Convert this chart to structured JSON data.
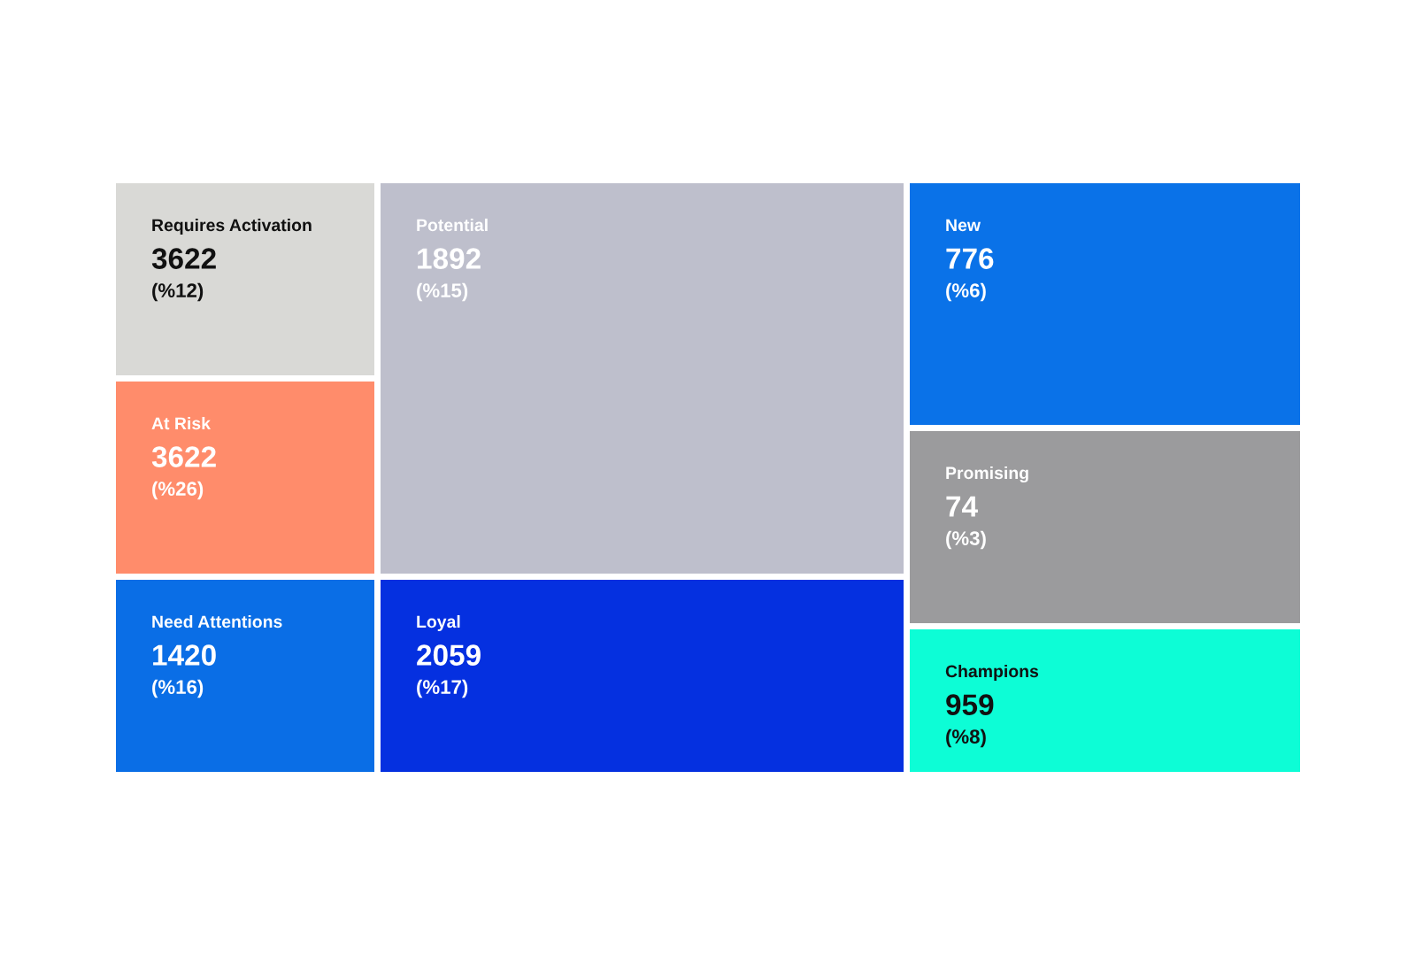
{
  "chart_data": {
    "type": "other",
    "data_labels": true,
    "categories": [
      "Requires Activation",
      "At Risk",
      "Need Attentions",
      "Potential",
      "Loyal",
      "New",
      "Promising",
      "Champions"
    ],
    "series": [
      {
        "colors": [
          "#d9d9d6",
          "#ff8c6b",
          "#0a6ee6",
          "#bebfcc",
          "#0530e0",
          "#0a72e8",
          "#9b9b9d",
          "#0dfdd6"
        ],
        "values": [
          3622,
          3622,
          1420,
          1892,
          2059,
          776,
          74,
          959
        ]
      },
      {
        "colors": [
          "#111111",
          "#ffffff",
          "#ffffff",
          "#ffffff",
          "#ffffff",
          "#ffffff",
          "#ffffff",
          "#111111"
        ],
        "values": [
          12,
          26,
          16,
          15,
          17,
          6,
          3,
          8
        ],
        "value_labels": [
          "(%12)",
          "(%26)",
          "(%16)",
          "(%15)",
          "(%17)",
          "(%6)",
          "(%3)",
          "(%8)"
        ]
      }
    ]
  }
}
